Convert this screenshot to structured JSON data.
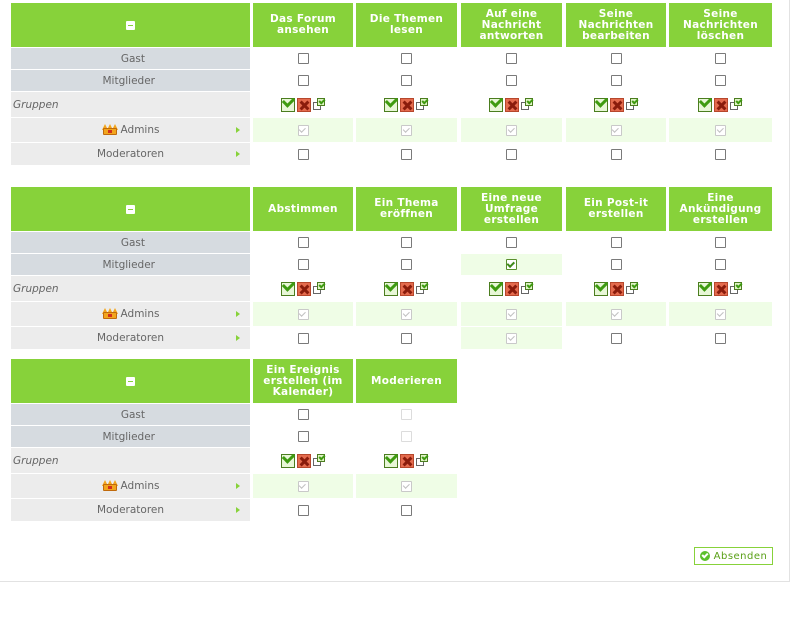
{
  "labels": {
    "gast": "Gast",
    "mitglieder": "Mitglieder",
    "gruppen": "Gruppen",
    "admins": "Admins",
    "moderatoren": "Moderatoren"
  },
  "submit_label": "Absenden",
  "colors": {
    "accent": "#87d23a",
    "row_label": "#d6dbe0",
    "row_light": "#ececec",
    "admin_bg": "#effde6"
  },
  "tables": [
    {
      "columns": [
        {
          "label": "Das Forum ansehen",
          "gast": "unchecked",
          "mitglieder": "unchecked",
          "admins": "checked-locked",
          "moderatoren": "unchecked"
        },
        {
          "label": "Die Themen lesen",
          "gast": "unchecked",
          "mitglieder": "unchecked",
          "admins": "checked-locked",
          "moderatoren": "unchecked"
        },
        {
          "label": "Auf eine Nachricht antworten",
          "gast": "unchecked",
          "mitglieder": "unchecked",
          "admins": "checked-locked",
          "moderatoren": "unchecked"
        },
        {
          "label": "Seine Nachrichten bearbeiten",
          "gast": "unchecked",
          "mitglieder": "unchecked",
          "admins": "checked-locked",
          "moderatoren": "unchecked"
        },
        {
          "label": "Seine Nachrichten löschen",
          "gast": "unchecked",
          "mitglieder": "unchecked",
          "admins": "checked-locked",
          "moderatoren": "unchecked"
        }
      ]
    },
    {
      "columns": [
        {
          "label": "Abstimmen",
          "gast": "unchecked",
          "mitglieder": "unchecked",
          "admins": "checked-locked",
          "moderatoren": "unchecked"
        },
        {
          "label": "Ein Thema eröffnen",
          "gast": "unchecked",
          "mitglieder": "unchecked",
          "admins": "checked-locked",
          "moderatoren": "unchecked"
        },
        {
          "label": "Eine neue Umfrage erstellen",
          "gast": "unchecked",
          "mitglieder": "checked",
          "admins": "checked-locked",
          "moderatoren": "checked-locked"
        },
        {
          "label": "Ein Post-it erstellen",
          "gast": "unchecked",
          "mitglieder": "unchecked",
          "admins": "checked-locked",
          "moderatoren": "unchecked"
        },
        {
          "label": "Eine Ankündigung erstellen",
          "gast": "unchecked",
          "mitglieder": "unchecked",
          "admins": "checked-locked",
          "moderatoren": "unchecked"
        }
      ]
    },
    {
      "columns": [
        {
          "label": "Ein Ereignis erstellen (im Kalender)",
          "gast": "unchecked",
          "mitglieder": "unchecked",
          "admins": "checked-locked",
          "moderatoren": "unchecked"
        },
        {
          "label": "Moderieren",
          "gast": "disabled",
          "mitglieder": "disabled",
          "admins": "checked-locked",
          "moderatoren": "unchecked"
        }
      ]
    }
  ]
}
